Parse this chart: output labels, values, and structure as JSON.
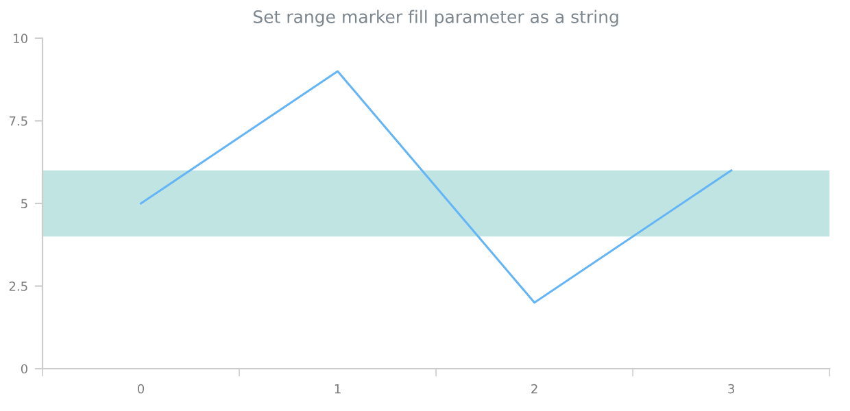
{
  "chart_data": {
    "type": "line",
    "title": "Set range marker fill parameter as a string",
    "categories": [
      "0",
      "1",
      "2",
      "3"
    ],
    "series": [
      {
        "color": "#64b5f6",
        "values": [
          5,
          9,
          2,
          6
        ]
      }
    ],
    "ylim": [
      0,
      10
    ],
    "yticks": [
      0,
      {
        "value": 2.5,
        "label": "2.5"
      },
      5,
      {
        "value": 7.5,
        "label": "7.5"
      },
      10
    ],
    "bands": [
      {
        "axis": "y",
        "from": 4,
        "to": 6,
        "color": "#c0e4e2"
      }
    ],
    "grid": false,
    "marker": "none",
    "line_style": "solid"
  }
}
